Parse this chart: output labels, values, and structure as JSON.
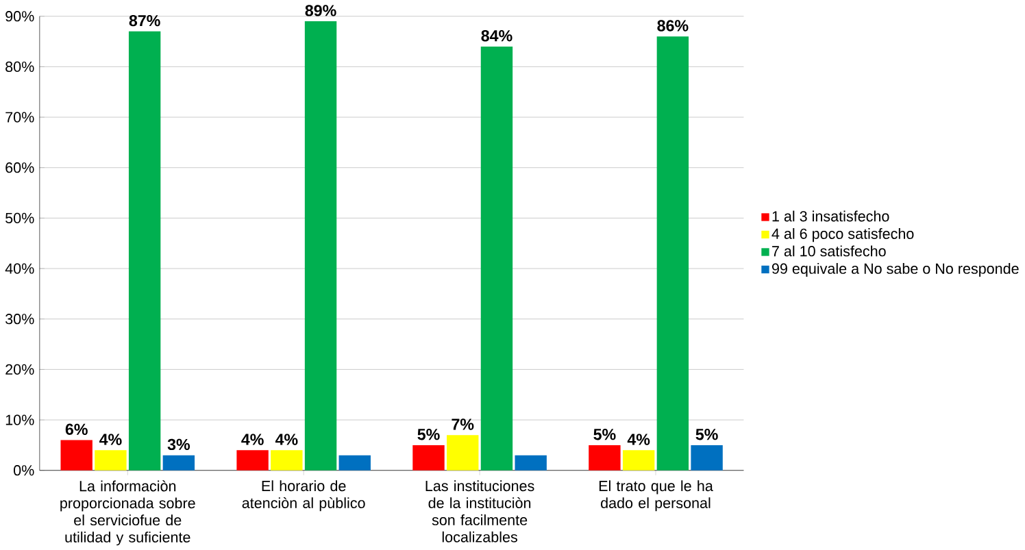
{
  "chart_data": {
    "type": "bar",
    "categories": [
      "La informaciòn proporcionada sobre el serviciofue de utilidad y suficiente",
      "El horario de atenciòn al pùblico",
      "Las instituciones de la instituciòn son facilmente localizables",
      "El trato que le ha dado el personal"
    ],
    "series": [
      {
        "name": "1 al 3 insatisfecho",
        "color": "#ff0000",
        "values": [
          6,
          4,
          5,
          5
        ],
        "value_labels": [
          "6%",
          "4%",
          "5%",
          "5%"
        ]
      },
      {
        "name": "4 al 6 poco satisfecho",
        "color": "#ffff00",
        "values": [
          4,
          4,
          7,
          4
        ],
        "value_labels": [
          "4%",
          "4%",
          "7%",
          "4%"
        ]
      },
      {
        "name": "7 al 10 satisfecho",
        "color": "#00b050",
        "values": [
          87,
          89,
          84,
          86
        ],
        "value_labels": [
          "87%",
          "89%",
          "84%",
          "86%"
        ]
      },
      {
        "name": "99 equivale a No sabe o No responde",
        "color": "#0070c0",
        "values": [
          3,
          3,
          3,
          5
        ],
        "value_labels": [
          "3%",
          null,
          null,
          "5%"
        ]
      }
    ],
    "ylim": [
      0,
      90
    ],
    "yticks": [
      {
        "value": 0,
        "label": "0%"
      },
      {
        "value": 10,
        "label": "10%"
      },
      {
        "value": 20,
        "label": "20%"
      },
      {
        "value": 30,
        "label": "30%"
      },
      {
        "value": 40,
        "label": "40%"
      },
      {
        "value": 50,
        "label": "50%"
      },
      {
        "value": 60,
        "label": "60%"
      },
      {
        "value": 70,
        "label": "70%"
      },
      {
        "value": 80,
        "label": "80%"
      },
      {
        "value": 90,
        "label": "90%"
      }
    ],
    "grid": "y",
    "legend": "right"
  }
}
